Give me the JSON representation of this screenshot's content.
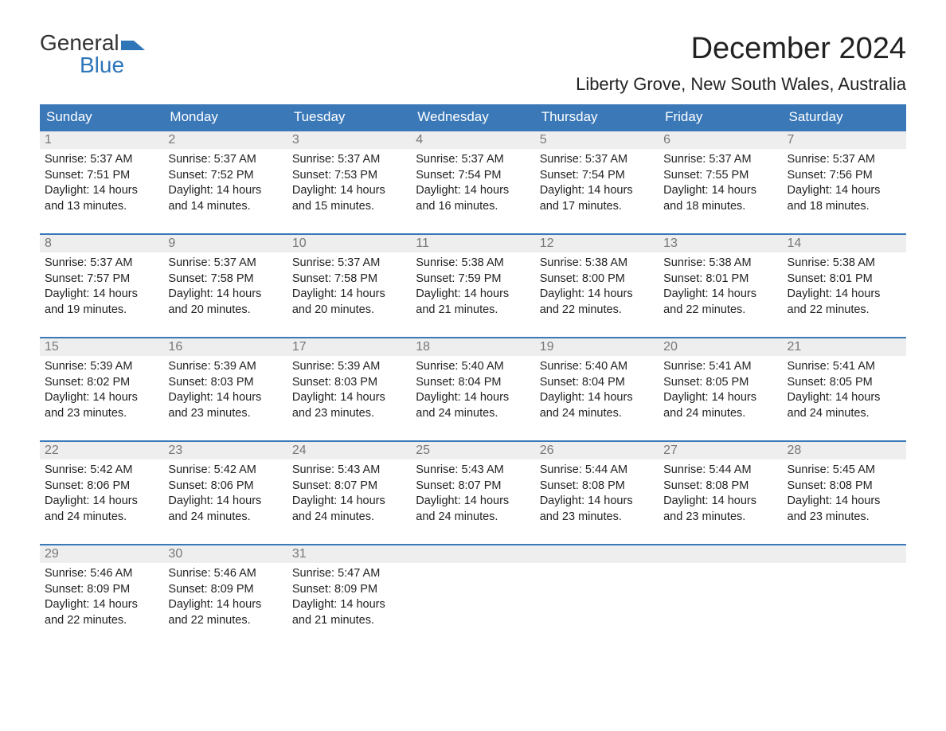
{
  "logo": {
    "top": "General",
    "bottom": "Blue",
    "flag_color": "#2f76b8"
  },
  "title": "December 2024",
  "location": "Liberty Grove, New South Wales, Australia",
  "colors": {
    "header_bg": "#3a78b8",
    "header_text": "#ffffff",
    "daynum_bg": "#eeeeee",
    "daynum_text": "#777777",
    "border": "#3a78b8",
    "body_text": "#222222"
  },
  "day_names": [
    "Sunday",
    "Monday",
    "Tuesday",
    "Wednesday",
    "Thursday",
    "Friday",
    "Saturday"
  ],
  "labels": {
    "sunrise": "Sunrise:",
    "sunset": "Sunset:",
    "daylight": "Daylight:"
  },
  "weeks": [
    [
      {
        "num": "1",
        "sunrise": "5:37 AM",
        "sunset": "7:51 PM",
        "daylight": "14 hours and 13 minutes."
      },
      {
        "num": "2",
        "sunrise": "5:37 AM",
        "sunset": "7:52 PM",
        "daylight": "14 hours and 14 minutes."
      },
      {
        "num": "3",
        "sunrise": "5:37 AM",
        "sunset": "7:53 PM",
        "daylight": "14 hours and 15 minutes."
      },
      {
        "num": "4",
        "sunrise": "5:37 AM",
        "sunset": "7:54 PM",
        "daylight": "14 hours and 16 minutes."
      },
      {
        "num": "5",
        "sunrise": "5:37 AM",
        "sunset": "7:54 PM",
        "daylight": "14 hours and 17 minutes."
      },
      {
        "num": "6",
        "sunrise": "5:37 AM",
        "sunset": "7:55 PM",
        "daylight": "14 hours and 18 minutes."
      },
      {
        "num": "7",
        "sunrise": "5:37 AM",
        "sunset": "7:56 PM",
        "daylight": "14 hours and 18 minutes."
      }
    ],
    [
      {
        "num": "8",
        "sunrise": "5:37 AM",
        "sunset": "7:57 PM",
        "daylight": "14 hours and 19 minutes."
      },
      {
        "num": "9",
        "sunrise": "5:37 AM",
        "sunset": "7:58 PM",
        "daylight": "14 hours and 20 minutes."
      },
      {
        "num": "10",
        "sunrise": "5:37 AM",
        "sunset": "7:58 PM",
        "daylight": "14 hours and 20 minutes."
      },
      {
        "num": "11",
        "sunrise": "5:38 AM",
        "sunset": "7:59 PM",
        "daylight": "14 hours and 21 minutes."
      },
      {
        "num": "12",
        "sunrise": "5:38 AM",
        "sunset": "8:00 PM",
        "daylight": "14 hours and 22 minutes."
      },
      {
        "num": "13",
        "sunrise": "5:38 AM",
        "sunset": "8:01 PM",
        "daylight": "14 hours and 22 minutes."
      },
      {
        "num": "14",
        "sunrise": "5:38 AM",
        "sunset": "8:01 PM",
        "daylight": "14 hours and 22 minutes."
      }
    ],
    [
      {
        "num": "15",
        "sunrise": "5:39 AM",
        "sunset": "8:02 PM",
        "daylight": "14 hours and 23 minutes."
      },
      {
        "num": "16",
        "sunrise": "5:39 AM",
        "sunset": "8:03 PM",
        "daylight": "14 hours and 23 minutes."
      },
      {
        "num": "17",
        "sunrise": "5:39 AM",
        "sunset": "8:03 PM",
        "daylight": "14 hours and 23 minutes."
      },
      {
        "num": "18",
        "sunrise": "5:40 AM",
        "sunset": "8:04 PM",
        "daylight": "14 hours and 24 minutes."
      },
      {
        "num": "19",
        "sunrise": "5:40 AM",
        "sunset": "8:04 PM",
        "daylight": "14 hours and 24 minutes."
      },
      {
        "num": "20",
        "sunrise": "5:41 AM",
        "sunset": "8:05 PM",
        "daylight": "14 hours and 24 minutes."
      },
      {
        "num": "21",
        "sunrise": "5:41 AM",
        "sunset": "8:05 PM",
        "daylight": "14 hours and 24 minutes."
      }
    ],
    [
      {
        "num": "22",
        "sunrise": "5:42 AM",
        "sunset": "8:06 PM",
        "daylight": "14 hours and 24 minutes."
      },
      {
        "num": "23",
        "sunrise": "5:42 AM",
        "sunset": "8:06 PM",
        "daylight": "14 hours and 24 minutes."
      },
      {
        "num": "24",
        "sunrise": "5:43 AM",
        "sunset": "8:07 PM",
        "daylight": "14 hours and 24 minutes."
      },
      {
        "num": "25",
        "sunrise": "5:43 AM",
        "sunset": "8:07 PM",
        "daylight": "14 hours and 24 minutes."
      },
      {
        "num": "26",
        "sunrise": "5:44 AM",
        "sunset": "8:08 PM",
        "daylight": "14 hours and 23 minutes."
      },
      {
        "num": "27",
        "sunrise": "5:44 AM",
        "sunset": "8:08 PM",
        "daylight": "14 hours and 23 minutes."
      },
      {
        "num": "28",
        "sunrise": "5:45 AM",
        "sunset": "8:08 PM",
        "daylight": "14 hours and 23 minutes."
      }
    ],
    [
      {
        "num": "29",
        "sunrise": "5:46 AM",
        "sunset": "8:09 PM",
        "daylight": "14 hours and 22 minutes."
      },
      {
        "num": "30",
        "sunrise": "5:46 AM",
        "sunset": "8:09 PM",
        "daylight": "14 hours and 22 minutes."
      },
      {
        "num": "31",
        "sunrise": "5:47 AM",
        "sunset": "8:09 PM",
        "daylight": "14 hours and 21 minutes."
      },
      {
        "empty": true
      },
      {
        "empty": true
      },
      {
        "empty": true
      },
      {
        "empty": true
      }
    ]
  ]
}
